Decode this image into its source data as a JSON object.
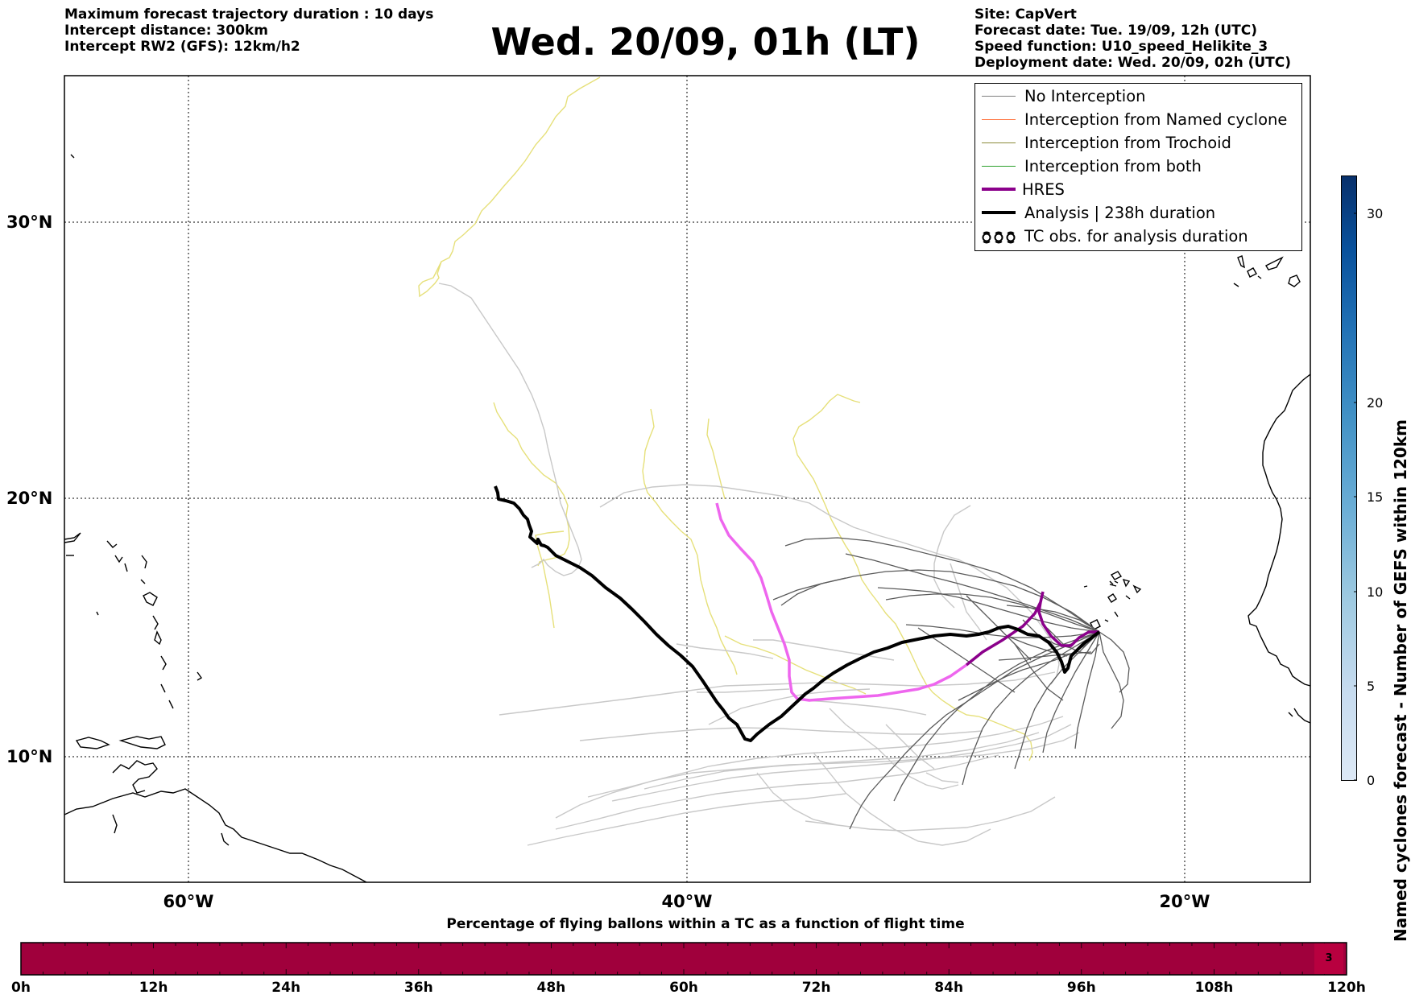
{
  "header": {
    "left_lines": [
      "Maximum forecast trajectory duration : 10 days",
      "Intercept distance: 300km",
      "Intercept RW2 (GFS):  12km/h2"
    ],
    "title": "Wed. 20/09, 01h (LT)",
    "right_lines": [
      "Site: CapVert",
      "Forecast date: Tue. 19/09, 12h (UTC)",
      "Speed function: U10_speed_Helikite_3",
      "Deployment date: Wed. 20/09, 02h (UTC)"
    ]
  },
  "map": {
    "lat_labels": [
      "30°N",
      "20°N",
      "10°N"
    ],
    "lon_labels": [
      "60°W",
      "40°W",
      "20°W"
    ],
    "colors": {
      "no_interception": "#7f7f7f",
      "named_cyclone": "#ff7f50",
      "trochoid": "#8b8b3a",
      "both": "#2ca02c",
      "hres": "#8b008b",
      "hres_early": "#ee66ee",
      "analysis": "#000000",
      "gefs_light": "#c8c8c8",
      "gefs_dark": "#5a5a5a",
      "trochoid_tracks": "#e6e07a"
    }
  },
  "legend": {
    "items": [
      {
        "label": "No Interception",
        "color": "#7f7f7f"
      },
      {
        "label": "Interception from Named cyclone",
        "color": "#ff7f50"
      },
      {
        "label": "Interception from Trochoid",
        "color": "#8b8b3a"
      },
      {
        "label": "Interception from both",
        "color": "#2ca02c"
      },
      {
        "label": "HRES",
        "color": "#8b008b"
      },
      {
        "label": "Analysis | 238h duration",
        "color": "#000000"
      },
      {
        "label": "TC obs. for analysis duration",
        "color": "#000000"
      }
    ]
  },
  "colorbar": {
    "title": "Named cyclones forecast - Number of GEFS within 120km",
    "ticks": [
      "30",
      "20",
      "15",
      "10",
      "5",
      "0"
    ],
    "colors": [
      "#dde9f6",
      "#c6dbef",
      "#9ecae1",
      "#6baed6",
      "#4292c6",
      "#2171b5",
      "#08519c",
      "#08306b"
    ]
  },
  "flight_bar": {
    "title": "Percentage of flying ballons within a TC as a function of flight time",
    "hours": [
      "0h",
      "12h",
      "24h",
      "36h",
      "48h",
      "60h",
      "72h",
      "84h",
      "96h",
      "108h",
      "120h"
    ],
    "last_value": "3",
    "fill_color": "#a0003c"
  }
}
